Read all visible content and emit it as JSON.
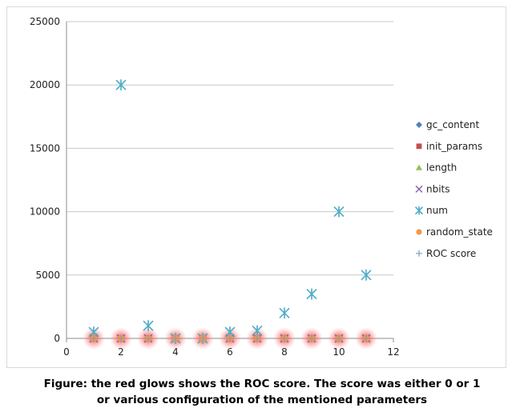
{
  "chart_data": {
    "type": "scatter",
    "xlim": [
      0,
      12
    ],
    "ylim": [
      0,
      25000
    ],
    "x_ticks": [
      0,
      2,
      4,
      6,
      8,
      10,
      12
    ],
    "y_ticks": [
      0,
      5000,
      10000,
      15000,
      20000,
      25000
    ],
    "grid": "horizontal",
    "legend_position": "right",
    "series": [
      {
        "name": "gc_content",
        "marker": "diamond",
        "color": "#4f81bd",
        "x": [
          1,
          2,
          3,
          4,
          5,
          6,
          7,
          8,
          9,
          10,
          11
        ],
        "y": [
          0,
          0,
          0,
          0,
          0,
          0,
          0,
          0,
          0,
          0,
          0
        ]
      },
      {
        "name": "init_params",
        "marker": "square",
        "color": "#c0504d",
        "x": [
          1,
          2,
          3,
          4,
          5,
          6,
          7,
          8,
          9,
          10,
          11
        ],
        "y": [
          0,
          0,
          0,
          0,
          0,
          0,
          0,
          0,
          0,
          0,
          0
        ]
      },
      {
        "name": "length",
        "marker": "triangle",
        "color": "#9bbb59",
        "x": [
          1,
          2,
          3,
          4,
          5,
          6,
          7,
          8,
          9,
          10,
          11
        ],
        "y": [
          0,
          0,
          0,
          0,
          0,
          0,
          0,
          0,
          0,
          0,
          0
        ]
      },
      {
        "name": "nbits",
        "marker": "x",
        "color": "#8064a2",
        "x": [
          1,
          2,
          3,
          4,
          5,
          6,
          7,
          8,
          9,
          10,
          11
        ],
        "y": [
          0,
          0,
          0,
          0,
          0,
          0,
          0,
          0,
          0,
          0,
          0
        ]
      },
      {
        "name": "num",
        "marker": "star",
        "color": "#4bacc6",
        "x": [
          1,
          2,
          3,
          4,
          5,
          6,
          7,
          8,
          9,
          10,
          11
        ],
        "y": [
          500,
          20000,
          1000,
          0,
          0,
          500,
          600,
          2000,
          3500,
          10000,
          5000
        ]
      },
      {
        "name": "random_state",
        "marker": "circle",
        "color": "#f79646",
        "glow": "#ff5a5a",
        "x": [
          1,
          2,
          3,
          4,
          5,
          6,
          7,
          8,
          9,
          10,
          11
        ],
        "y": [
          0,
          0,
          0,
          0,
          0,
          0,
          0,
          0,
          0,
          0,
          0
        ]
      },
      {
        "name": "ROC score",
        "marker": "plus",
        "color": "#7f9cc9",
        "x": [
          1,
          2,
          3,
          4,
          5,
          6,
          7,
          8,
          9,
          10,
          11
        ],
        "y": [
          1,
          1,
          1,
          1,
          1,
          1,
          1,
          1,
          1,
          1,
          1
        ]
      }
    ]
  },
  "caption": {
    "line1": "Figure: the red glows shows the ROC score. The score was either 0 or 1",
    "line2": "or various configuration of the mentioned parameters"
  }
}
